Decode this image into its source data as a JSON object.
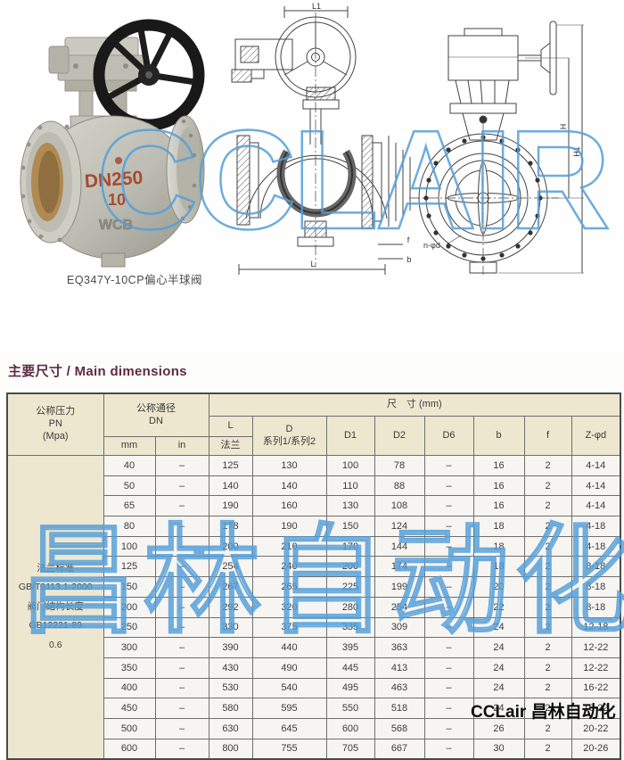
{
  "page": {
    "caption": "EQ347Y-10CP偏心半球阀",
    "section_title_zh": "主要尺寸",
    "section_title_sep": " / ",
    "section_title_en": "Main dimensions"
  },
  "photo": {
    "marking_dn": "DN250",
    "marking_pn": "10",
    "marking_cast": "WCB"
  },
  "drawing_labels": {
    "l1": "L1",
    "l": "L",
    "f": "f",
    "b": "b",
    "h": "H",
    "h1": "H1",
    "nphid": "n-φd"
  },
  "watermarks": {
    "photo_text": "CCLAIR",
    "table_text": "昌林自动化",
    "corner_text": "CCLair 昌林自动化"
  },
  "colors": {
    "title_accent": "#5f2b42",
    "watermark_blue": "#549ed8",
    "header_bg": "#eee7d0",
    "cell_bg": "#f6f5f2",
    "marking_red": "#a84a30"
  },
  "table": {
    "header": {
      "pn_lines": [
        "公称压力",
        "PN",
        "(Mpa)"
      ],
      "dn_lines": [
        "公称通径",
        "DN"
      ],
      "dn_sub": [
        "mm",
        "in"
      ],
      "size_title": "尺　寸 (mm)",
      "l_label": "L",
      "l_sub": "法兰",
      "d_label": "D",
      "d_sub": "系列1/系列2",
      "cols": [
        "D1",
        "D2",
        "D6",
        "b",
        "f",
        "Z-φd"
      ]
    },
    "pn_cell_lines": [
      "法兰标准",
      "GB/T9113.1-2000",
      "阀门结构长度",
      "GB12221-89",
      "0.6"
    ],
    "rows": [
      [
        "40",
        "–",
        "125",
        "130",
        "100",
        "78",
        "–",
        "16",
        "2",
        "4-14"
      ],
      [
        "50",
        "–",
        "140",
        "140",
        "110",
        "88",
        "–",
        "16",
        "2",
        "4-14"
      ],
      [
        "65",
        "–",
        "190",
        "160",
        "130",
        "108",
        "–",
        "16",
        "2",
        "4-14"
      ],
      [
        "80",
        "–",
        "178",
        "190",
        "150",
        "124",
        "–",
        "18",
        "2",
        "4-18"
      ],
      [
        "100",
        "–",
        "200",
        "210",
        "170",
        "144",
        "–",
        "18",
        "2",
        "4-18"
      ],
      [
        "125",
        "–",
        "254",
        "240",
        "200",
        "174",
        "–",
        "18",
        "2",
        "8-18"
      ],
      [
        "150",
        "–",
        "267",
        "265",
        "225",
        "199",
        "–",
        "20",
        "2",
        "8-18"
      ],
      [
        "200",
        "–",
        "292",
        "320",
        "280",
        "254",
        "–",
        "22",
        "2",
        "8-18"
      ],
      [
        "250",
        "–",
        "330",
        "375",
        "335",
        "309",
        "–",
        "24",
        "2",
        "12-18"
      ],
      [
        "300",
        "–",
        "390",
        "440",
        "395",
        "363",
        "–",
        "24",
        "2",
        "12-22"
      ],
      [
        "350",
        "–",
        "430",
        "490",
        "445",
        "413",
        "–",
        "24",
        "2",
        "12-22"
      ],
      [
        "400",
        "–",
        "530",
        "540",
        "495",
        "463",
        "–",
        "24",
        "2",
        "16-22"
      ],
      [
        "450",
        "–",
        "580",
        "595",
        "550",
        "518",
        "–",
        "24",
        "2",
        "16-22"
      ],
      [
        "500",
        "–",
        "630",
        "645",
        "600",
        "568",
        "–",
        "26",
        "2",
        "20-22"
      ],
      [
        "600",
        "–",
        "800",
        "755",
        "705",
        "667",
        "–",
        "30",
        "2",
        "20-26"
      ]
    ]
  }
}
